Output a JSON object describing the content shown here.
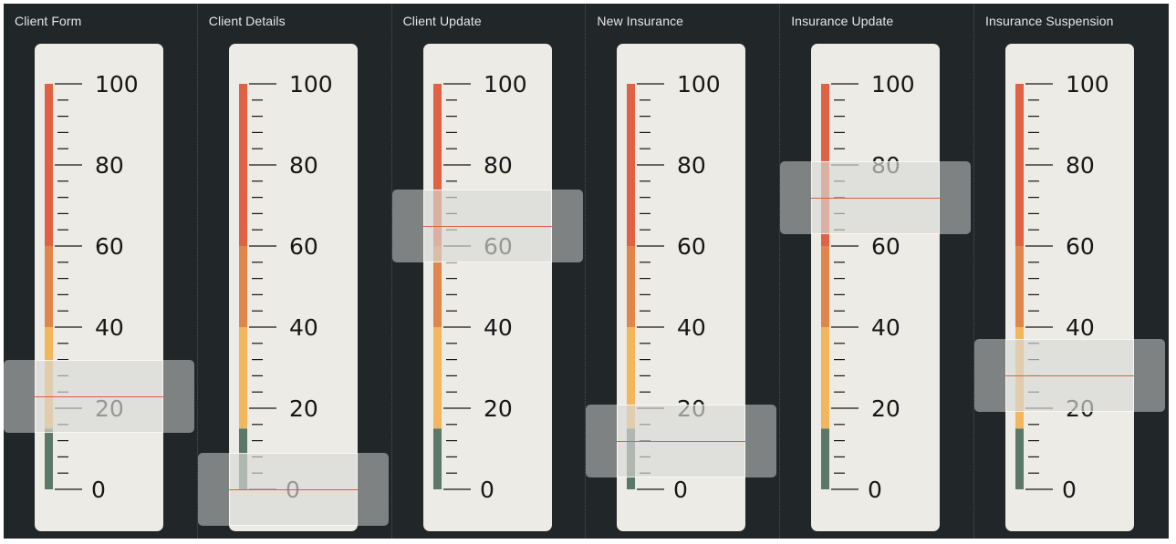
{
  "scale": {
    "min": 0,
    "max": 100,
    "labels": [
      "0",
      "20",
      "40",
      "60",
      "80",
      "100"
    ]
  },
  "colors": {
    "panel_bg": "#212629",
    "red_band": "#de6243",
    "orange_band": "#e0864a",
    "yellow_band": "#f2b75c",
    "green_band": "#5b7867",
    "indicator": "#d8623f",
    "card": "#ecebe6"
  },
  "bands": [
    {
      "from": 0,
      "to": 15,
      "color": "green_band"
    },
    {
      "from": 15,
      "to": 40,
      "color": "yellow_band"
    },
    {
      "from": 40,
      "to": 60,
      "color": "orange_band"
    },
    {
      "from": 60,
      "to": 100,
      "color": "red_band"
    }
  ],
  "meters": [
    {
      "title": "Client Form",
      "value": 23
    },
    {
      "title": "Client Details",
      "value": 0
    },
    {
      "title": "Client Update",
      "value": 65
    },
    {
      "title": "New Insurance",
      "value": 12
    },
    {
      "title": "Insurance Update",
      "value": 72
    },
    {
      "title": "Insurance Suspension",
      "value": 28
    }
  ]
}
